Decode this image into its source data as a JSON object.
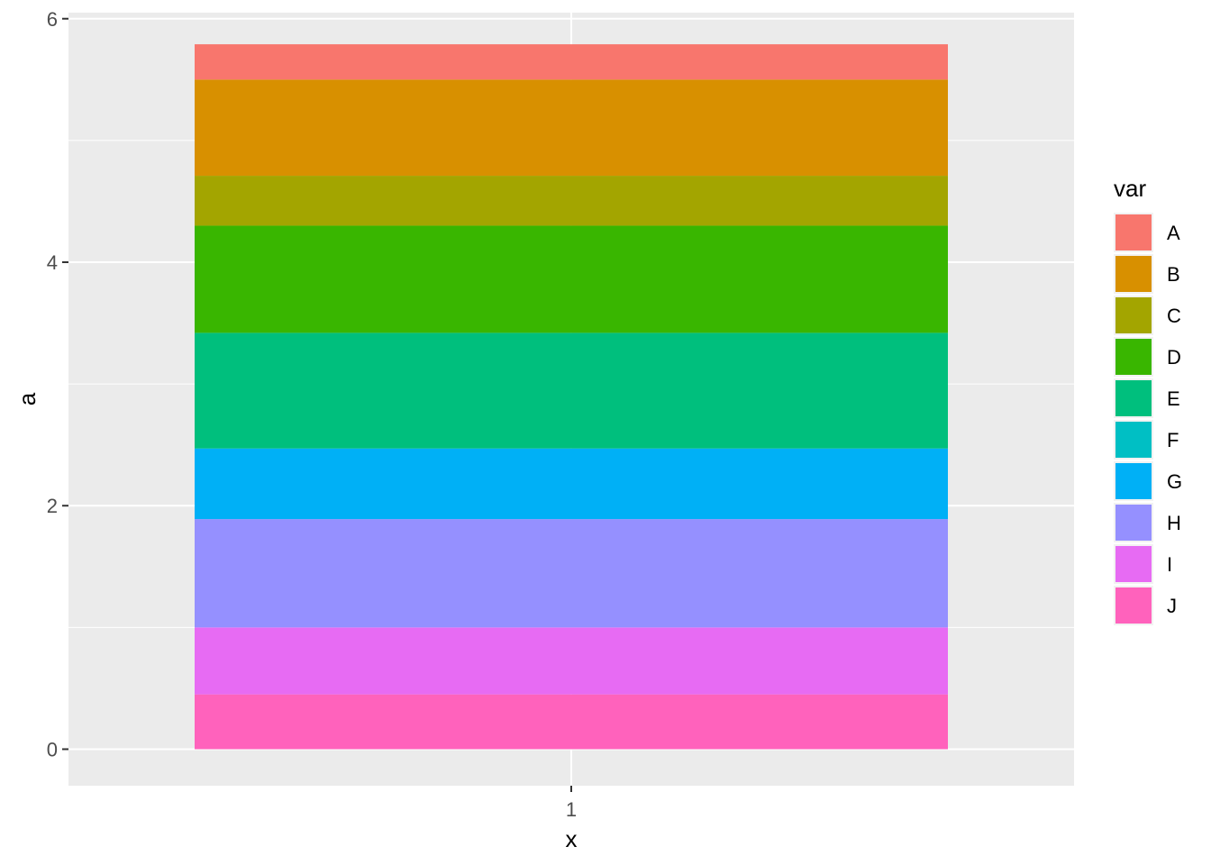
{
  "chart_data": {
    "type": "bar",
    "stacked": true,
    "categories": [
      "1"
    ],
    "xlabel": "x",
    "ylabel": "a",
    "ylim": [
      -0.3,
      6.05
    ],
    "yticks": [
      "0",
      "2",
      "4",
      "6"
    ],
    "grid": true,
    "background": "#EBEBEB",
    "legend": {
      "title": "var",
      "position": "right",
      "items": [
        {
          "label": "A",
          "color": "#F8766D"
        },
        {
          "label": "B",
          "color": "#D89000"
        },
        {
          "label": "C",
          "color": "#A3A500"
        },
        {
          "label": "D",
          "color": "#39B600"
        },
        {
          "label": "E",
          "color": "#00BF7D"
        },
        {
          "label": "F",
          "color": "#00BFC4"
        },
        {
          "label": "G",
          "color": "#00B0F6"
        },
        {
          "label": "H",
          "color": "#9590FF"
        },
        {
          "label": "I",
          "color": "#E76BF3"
        },
        {
          "label": "J",
          "color": "#FF62BC"
        }
      ]
    },
    "series": [
      {
        "name": "A",
        "values": [
          0.29
        ]
      },
      {
        "name": "B",
        "values": [
          0.79
        ]
      },
      {
        "name": "C",
        "values": [
          0.41
        ]
      },
      {
        "name": "D",
        "values": [
          0.88
        ]
      },
      {
        "name": "E",
        "values": [
          0.95
        ]
      },
      {
        "name": "F",
        "values": [
          0.0
        ]
      },
      {
        "name": "G",
        "values": [
          0.58
        ]
      },
      {
        "name": "H",
        "values": [
          0.89
        ]
      },
      {
        "name": "I",
        "values": [
          0.55
        ]
      },
      {
        "name": "J",
        "values": [
          0.45
        ]
      }
    ]
  }
}
